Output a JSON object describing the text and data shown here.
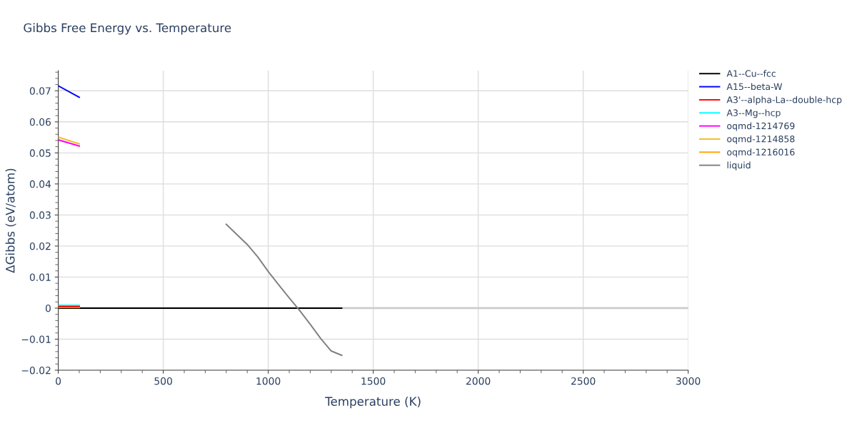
{
  "chart_data": {
    "type": "line",
    "title": "Gibbs Free Energy vs. Temperature",
    "xlabel": "Temperature (K)",
    "ylabel": "ΔGibbs (eV/atom)",
    "xlim": [
      0,
      3000
    ],
    "xticks": [
      0,
      500,
      1000,
      1500,
      2000,
      2500,
      3000
    ],
    "ylim": [
      -0.02,
      0.0765
    ],
    "yticks": [
      {
        "value": -0.02,
        "label": "−0.02"
      },
      {
        "value": -0.01,
        "label": "−0.01"
      },
      0,
      0.01,
      0.02,
      0.03,
      0.04,
      0.05,
      0.06,
      0.07
    ],
    "grid": true,
    "legend": "top right",
    "marker": "none",
    "line_style": "solid",
    "series": [
      {
        "name": "A1--Cu--fcc",
        "color": "#000000",
        "x": [
          0,
          100,
          300,
          500,
          800,
          1000,
          1200,
          1350
        ],
        "values": [
          0,
          0,
          0,
          0,
          0,
          0,
          0,
          0
        ]
      },
      {
        "name": "A15--beta-W",
        "color": "#0000ff",
        "x": [
          0,
          100
        ],
        "values": [
          0.0716,
          0.0679
        ]
      },
      {
        "name": "A3'--alpha-La--double-hcp",
        "color": "#ff0000",
        "x": [
          0,
          100
        ],
        "values": [
          0.0005,
          0.0005
        ]
      },
      {
        "name": "A3--Mg--hcp",
        "color": "#00ffff",
        "x": [
          0,
          100
        ],
        "values": [
          0.0009,
          0.0009
        ]
      },
      {
        "name": "oqmd-1214769",
        "color": "#ff00ff",
        "x": [
          0,
          100
        ],
        "values": [
          0.0542,
          0.0522
        ]
      },
      {
        "name": "oqmd-1214858",
        "color": "#f0c020",
        "x": [
          0,
          100
        ],
        "values": [
          0.0551,
          0.0529
        ]
      },
      {
        "name": "oqmd-1216016",
        "color": "#ffa500",
        "x": [
          0,
          100
        ],
        "values": [
          0.0002,
          0.0002
        ]
      },
      {
        "name": "liquid",
        "color": "#808080",
        "x": [
          800,
          900,
          950,
          1000,
          1050,
          1100,
          1150,
          1200,
          1250,
          1300,
          1350
        ],
        "values": [
          0.027,
          0.0205,
          0.0165,
          0.0118,
          0.0075,
          0.0033,
          -0.0008,
          -0.0052,
          -0.0098,
          -0.0138,
          -0.0152
        ]
      }
    ]
  }
}
